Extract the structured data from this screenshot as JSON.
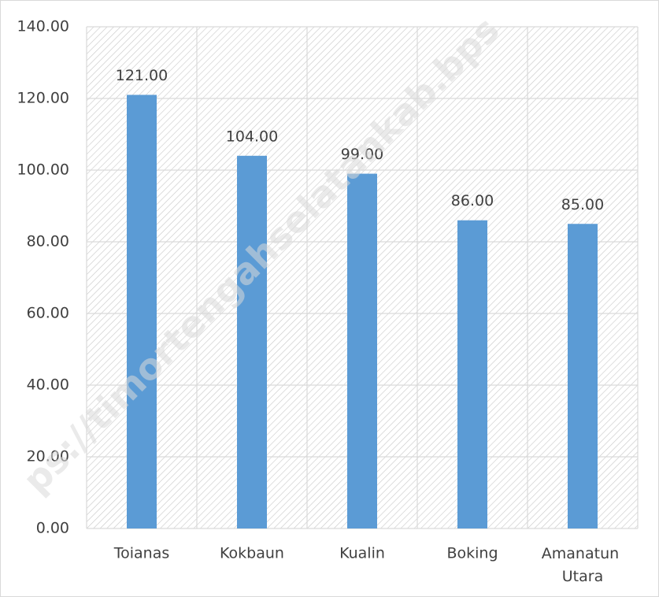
{
  "chart_data": {
    "type": "bar",
    "categories": [
      "Toianas",
      "Kokbaun",
      "Kualin",
      "Boking",
      "Amanatun Utara"
    ],
    "values": [
      121,
      104,
      99,
      86,
      85
    ],
    "value_labels": [
      "121.00",
      "104.00",
      "99.00",
      "86.00",
      "85.00"
    ],
    "color": "#5b9bd5",
    "ylim": [
      0,
      140
    ],
    "yticks": [
      {
        "value": 0,
        "label": "0.00"
      },
      {
        "value": 20,
        "label": "20.00"
      },
      {
        "value": 40,
        "label": "40.00"
      },
      {
        "value": 60,
        "label": "60.00"
      },
      {
        "value": 80,
        "label": "80.00"
      },
      {
        "value": 100,
        "label": "100.00"
      },
      {
        "value": 120,
        "label": "120.00"
      },
      {
        "value": 140,
        "label": "140.00"
      }
    ],
    "grid": true,
    "watermark": "ps://timortengahselatankab.bps"
  }
}
